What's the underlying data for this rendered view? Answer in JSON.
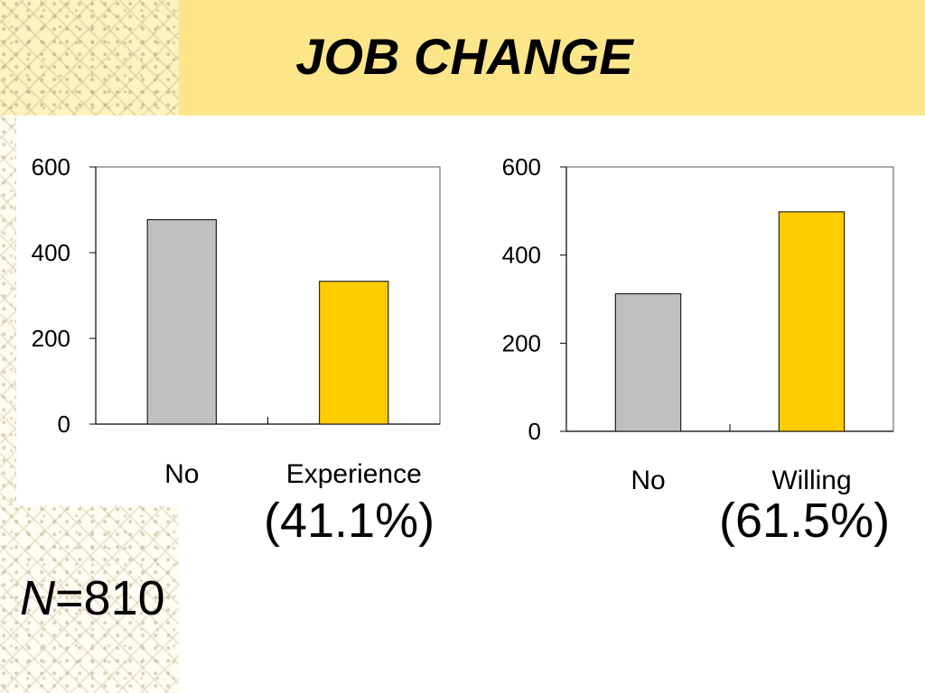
{
  "slide": {
    "title": "JOB CHANGE",
    "n_var": "N",
    "n_value": "=810"
  },
  "colors": {
    "header": "#fde68a",
    "bar_no": "#c0c0c0",
    "bar_yes": "#ffcc00"
  },
  "chart_data": [
    {
      "type": "bar",
      "categories": [
        "No",
        "Experience"
      ],
      "values": [
        477,
        333
      ],
      "ylim": [
        0,
        600
      ],
      "yticks": [
        0,
        200,
        400,
        600
      ],
      "ytick_labels": [
        "0",
        "200",
        "400",
        "600"
      ],
      "annotation": "(41.1%)",
      "grid": false
    },
    {
      "type": "bar",
      "categories": [
        "No",
        "Willing"
      ],
      "values": [
        312,
        498
      ],
      "ylim": [
        0,
        600
      ],
      "yticks": [
        0,
        200,
        400,
        600
      ],
      "ytick_labels": [
        "0",
        "200",
        "400",
        "600"
      ],
      "annotation": "(61.5%)",
      "grid": false
    }
  ]
}
